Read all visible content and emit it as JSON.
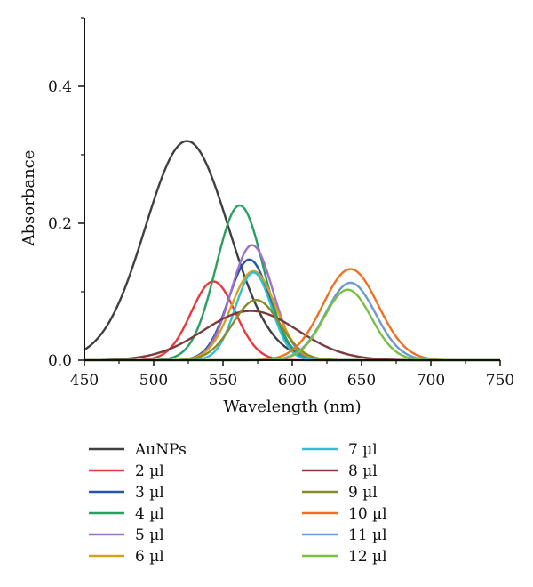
{
  "chart_data": {
    "type": "line",
    "xlabel": "Wavelength (nm)",
    "ylabel": "Absorbance",
    "xlim": [
      450,
      750
    ],
    "ylim": [
      0,
      0.5
    ],
    "xticks": [
      450,
      500,
      550,
      600,
      650,
      700,
      750
    ],
    "xtick_labels": [
      "450",
      "500",
      "550",
      "600",
      "650",
      "700",
      "750"
    ],
    "yticks": [
      0,
      0.2,
      0.4
    ],
    "ytick_labels": [
      "0.0",
      "0.2",
      "0.4"
    ],
    "grid": false,
    "legend_position": "bottom",
    "series": [
      {
        "name": "AuNPs",
        "color": "#404040",
        "peaks": [
          {
            "center": 524,
            "height": 0.32,
            "width": 30,
            "tail": 8
          }
        ]
      },
      {
        "name": "2 µl",
        "color": "#e8383d",
        "peaks": [
          {
            "center": 543,
            "height": 0.115,
            "width": 16,
            "tail": 4
          }
        ]
      },
      {
        "name": "3 µl",
        "color": "#2455a8",
        "peaks": [
          {
            "center": 569,
            "height": 0.147,
            "width": 15,
            "tail": 4
          }
        ]
      },
      {
        "name": "4 µl",
        "color": "#28a060",
        "peaks": [
          {
            "center": 562,
            "height": 0.226,
            "width": 17,
            "tail": 4
          }
        ]
      },
      {
        "name": "5 µl",
        "color": "#a070c8",
        "peaks": [
          {
            "center": 571,
            "height": 0.168,
            "width": 15,
            "tail": 4
          }
        ]
      },
      {
        "name": "6 µl",
        "color": "#d9a020",
        "peaks": [
          {
            "center": 572,
            "height": 0.13,
            "width": 16,
            "tail": 4
          }
        ]
      },
      {
        "name": "7 µl",
        "color": "#30c0d0",
        "peaks": [
          {
            "center": 572,
            "height": 0.128,
            "width": 13,
            "tail": 4
          }
        ]
      },
      {
        "name": "8 µl",
        "color": "#7a3c3c",
        "peaks": [
          {
            "center": 570,
            "height": 0.072,
            "width": 34,
            "tail": 6
          }
        ]
      },
      {
        "name": "9 µl",
        "color": "#8a8a2a",
        "peaks": [
          {
            "center": 574,
            "height": 0.088,
            "width": 17,
            "tail": 4
          }
        ]
      },
      {
        "name": "10 µl",
        "color": "#f07020",
        "peaks": [
          {
            "center": 642,
            "height": 0.133,
            "width": 20,
            "tail": 4
          }
        ]
      },
      {
        "name": "11 µl",
        "color": "#6a9ad0",
        "peaks": [
          {
            "center": 642,
            "height": 0.113,
            "width": 18,
            "tail": 4
          }
        ]
      },
      {
        "name": "12 µl",
        "color": "#78c040",
        "peaks": [
          {
            "center": 640,
            "height": 0.103,
            "width": 17,
            "tail": 4
          }
        ]
      }
    ]
  }
}
